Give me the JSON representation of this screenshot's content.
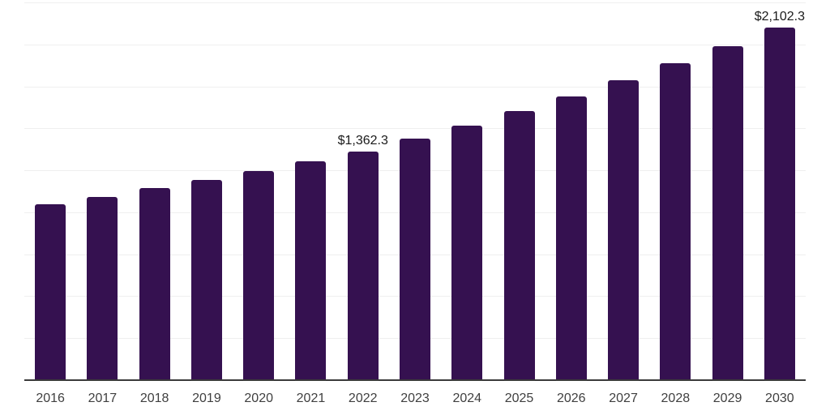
{
  "chart_data": {
    "type": "bar",
    "title": "",
    "xlabel": "",
    "ylabel": "",
    "categories": [
      "2016",
      "2017",
      "2018",
      "2019",
      "2020",
      "2021",
      "2022",
      "2023",
      "2024",
      "2025",
      "2026",
      "2027",
      "2028",
      "2029",
      "2030"
    ],
    "values": [
      1046.3,
      1093.4,
      1142.6,
      1194.0,
      1247.7,
      1303.8,
      1362.3,
      1438.2,
      1518.3,
      1602.9,
      1692.2,
      1786.4,
      1885.9,
      1990.9,
      2102.3
    ],
    "visible_data_labels": {
      "2022": "$1,362.3",
      "2030": "$2,102.3"
    },
    "ylim": [
      0,
      2250
    ],
    "gridline_interval": 250,
    "gridline_count": 9,
    "grid": true,
    "legend": "none",
    "y_axis_tick_labels": "none",
    "colors": {
      "bar": "#351150",
      "gridline": "#efefef",
      "axis_line": "#3b3b3b",
      "tick_label": "#3f3f3f",
      "data_label": "#1a1a1a",
      "background": "#ffffff"
    }
  }
}
